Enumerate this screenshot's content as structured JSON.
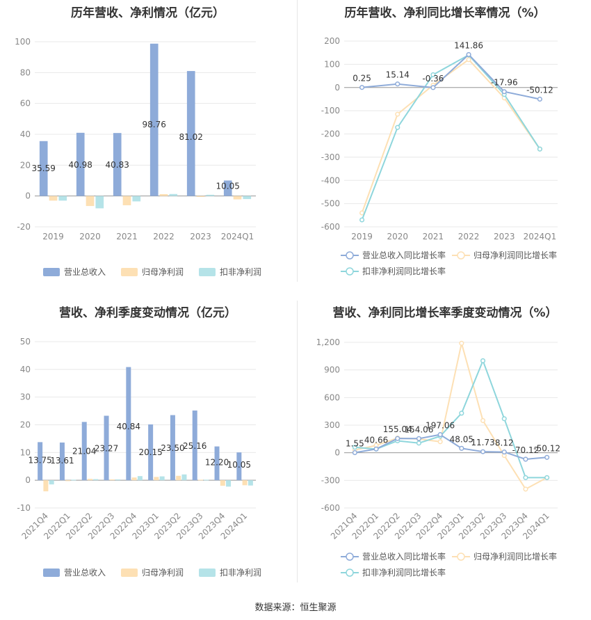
{
  "source_text": "数据来源：恒生聚源",
  "colors": {
    "revenue": "#8eabd9",
    "net_profit": "#fde0b4",
    "deducted_profit": "#b5e3e8",
    "revenue_line": "#8eabd9",
    "net_line": "#fde0b4",
    "deducted_line": "#8ed6dc",
    "grid": "#e8e8e8",
    "axis_text": "#888888"
  },
  "chart_data": [
    {
      "type": "bar",
      "title": "历年营收、净利情况（亿元）",
      "categories": [
        "2019",
        "2020",
        "2021",
        "2022",
        "2023",
        "2024Q1"
      ],
      "ylim": [
        -20,
        100
      ],
      "yticks": [
        "100",
        "80",
        "60",
        "40",
        "20",
        "0",
        "-20"
      ],
      "series": [
        {
          "name": "营业总收入",
          "values": [
            35.59,
            40.98,
            40.83,
            98.76,
            81.02,
            10.05
          ],
          "labels": [
            "35.59",
            "40.98",
            "40.83",
            "98.76",
            "81.02",
            "10.05"
          ]
        },
        {
          "name": "归母净利润",
          "values": [
            -3,
            -6.5,
            -6,
            1.2,
            -0.6,
            -2.2
          ]
        },
        {
          "name": "扣非净利润",
          "values": [
            -3,
            -8,
            -3.5,
            1.3,
            0.8,
            -2
          ]
        }
      ],
      "legend_position": "bottom"
    },
    {
      "type": "line",
      "title": "历年营收、净利同比增长率情况（%）",
      "categories": [
        "2019",
        "2020",
        "2021",
        "2022",
        "2023",
        "2024Q1"
      ],
      "ylim": [
        -600,
        200
      ],
      "yticks": [
        "200",
        "100",
        "0",
        "-100",
        "-200",
        "-300",
        "-400",
        "-500",
        "-600"
      ],
      "series": [
        {
          "name": "营业总收入同比增长率",
          "values": [
            0.25,
            15.14,
            -0.36,
            141.86,
            -17.96,
            -50.12
          ],
          "labels": [
            "0.25",
            "15.14",
            "-0.36",
            "141.86",
            "-17.96",
            "-50.12"
          ]
        },
        {
          "name": "归母净利润同比增长率",
          "values": [
            -540,
            -115,
            10,
            120,
            -45,
            -265
          ]
        },
        {
          "name": "扣非净利润同比增长率",
          "values": [
            -570,
            -172,
            55,
            140,
            -30,
            -265
          ]
        }
      ],
      "legend_position": "bottom"
    },
    {
      "type": "bar",
      "title": "营收、净利季度变动情况（亿元）",
      "categories": [
        "2021Q4",
        "2022Q1",
        "2022Q2",
        "2022Q3",
        "2022Q4",
        "2023Q1",
        "2023Q2",
        "2023Q3",
        "2023Q4",
        "2024Q1"
      ],
      "ylim": [
        -10,
        50
      ],
      "yticks": [
        "50",
        "40",
        "30",
        "20",
        "10",
        "0",
        "-10"
      ],
      "series": [
        {
          "name": "营业总收入",
          "values": [
            13.75,
            13.61,
            21.04,
            23.27,
            40.84,
            20.15,
            23.5,
            25.16,
            12.2,
            10.05
          ],
          "labels": [
            "13.75",
            "13.61",
            "21.04",
            "23.27",
            "40.84",
            "20.15",
            "23.50",
            "25.16",
            "12.20",
            "10.05"
          ]
        },
        {
          "name": "归母净利润",
          "values": [
            -4,
            -0.3,
            0.5,
            0.3,
            1,
            1.2,
            1.6,
            0.2,
            -2,
            -1.8
          ]
        },
        {
          "name": "扣非净利润",
          "values": [
            -1.5,
            0.2,
            0.4,
            0.3,
            1.5,
            1.4,
            2.1,
            0.2,
            -2.3,
            -1.9
          ]
        }
      ],
      "legend_position": "bottom"
    },
    {
      "type": "line",
      "title": "营收、净利同比增长率季度变动情况（%）",
      "categories": [
        "2021Q4",
        "2022Q1",
        "2022Q2",
        "2022Q3",
        "2022Q4",
        "2023Q1",
        "2023Q2",
        "2023Q3",
        "2023Q4",
        "2024Q1"
      ],
      "ylim": [
        -600,
        1200
      ],
      "yticks": [
        "1,200",
        "900",
        "600",
        "300",
        "0",
        "-300",
        "-600"
      ],
      "series": [
        {
          "name": "营业总收入同比增长率",
          "values": [
            1.55,
            40.66,
            155.04,
            154.06,
            197.06,
            48.05,
            11.73,
            8.12,
            -70.12,
            -50.12
          ],
          "labels": [
            "1.55",
            "40.66",
            "155.04",
            "154.06",
            "197.06",
            "48.05",
            "11.73",
            "8.12",
            "-70.12",
            "-50.12"
          ]
        },
        {
          "name": "归母净利润同比增长率",
          "values": [
            30,
            80,
            160,
            150,
            120,
            1190,
            350,
            -30,
            -395,
            -270
          ]
        },
        {
          "name": "扣非净利润同比增长率",
          "values": [
            60,
            40,
            130,
            105,
            180,
            430,
            1000,
            370,
            -270,
            -270
          ]
        }
      ],
      "legend_position": "bottom"
    }
  ]
}
